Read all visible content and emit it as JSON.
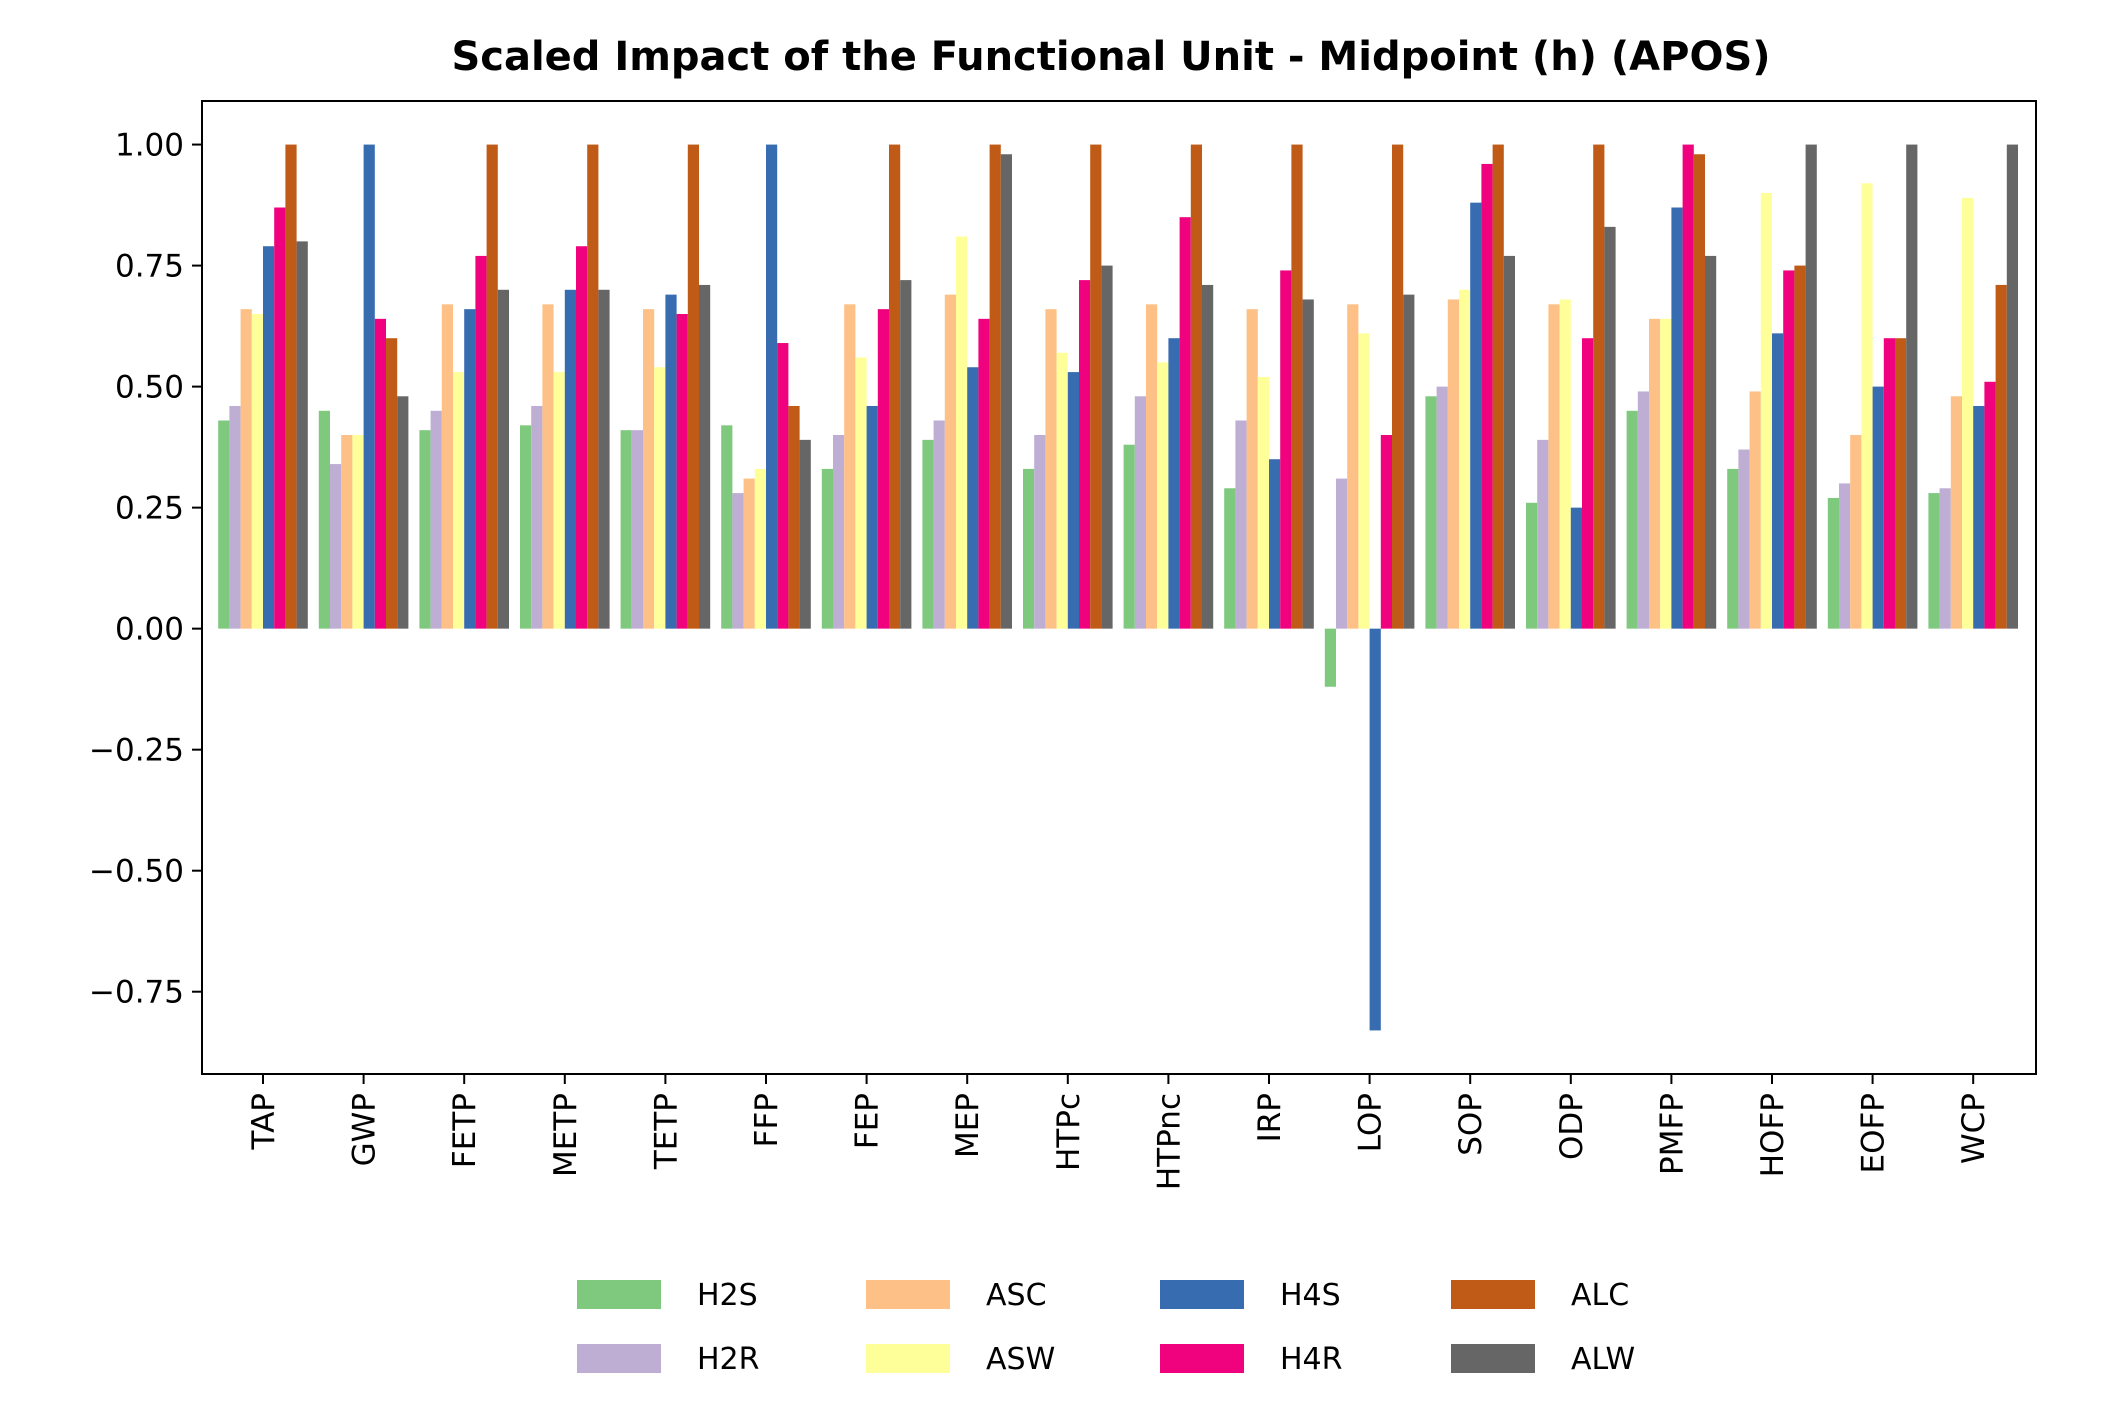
{
  "chart_data": {
    "type": "bar",
    "title": "Scaled Impact of the Functional Unit - Midpoint (h) (APOS)",
    "xlabel": "",
    "ylabel": "",
    "ylim": [
      -0.92,
      1.09
    ],
    "yticks": [
      1.0,
      0.75,
      0.5,
      0.25,
      0.0,
      -0.25,
      -0.5,
      -0.75
    ],
    "ytick_labels": [
      "1.00",
      "0.75",
      "0.50",
      "0.25",
      "0.00",
      "−0.25",
      "−0.50",
      "−0.75"
    ],
    "grid": false,
    "legend_position": "bottom-center",
    "categories": [
      "TAP",
      "GWP",
      "FETP",
      "METP",
      "TETP",
      "FFP",
      "FEP",
      "MEP",
      "HTPc",
      "HTPnc",
      "IRP",
      "LOP",
      "SOP",
      "ODP",
      "PMFP",
      "HOFP",
      "EOFP",
      "WCP"
    ],
    "series": [
      {
        "name": "H2S",
        "color": "#7fc97f",
        "values": [
          0.43,
          0.45,
          0.41,
          0.42,
          0.41,
          0.42,
          0.33,
          0.39,
          0.33,
          0.38,
          0.29,
          -0.12,
          0.48,
          0.26,
          0.45,
          0.33,
          0.27,
          0.28
        ]
      },
      {
        "name": "H2R",
        "color": "#beaed4",
        "values": [
          0.46,
          0.34,
          0.45,
          0.46,
          0.41,
          0.28,
          0.4,
          0.43,
          0.4,
          0.48,
          0.43,
          0.31,
          0.5,
          0.39,
          0.49,
          0.37,
          0.3,
          0.29
        ]
      },
      {
        "name": "ASC",
        "color": "#fdc086",
        "values": [
          0.66,
          0.4,
          0.67,
          0.67,
          0.66,
          0.31,
          0.67,
          0.69,
          0.66,
          0.67,
          0.66,
          0.67,
          0.68,
          0.67,
          0.64,
          0.49,
          0.4,
          0.48
        ]
      },
      {
        "name": "ASW",
        "color": "#ffff99",
        "values": [
          0.65,
          0.4,
          0.53,
          0.53,
          0.54,
          0.33,
          0.56,
          0.81,
          0.57,
          0.55,
          0.52,
          0.61,
          0.7,
          0.68,
          0.64,
          0.9,
          0.92,
          0.89
        ]
      },
      {
        "name": "H4S",
        "color": "#386cb0",
        "values": [
          0.79,
          1.0,
          0.66,
          0.7,
          0.69,
          1.0,
          0.46,
          0.54,
          0.53,
          0.6,
          0.35,
          -0.83,
          0.88,
          0.25,
          0.87,
          0.61,
          0.5,
          0.46
        ]
      },
      {
        "name": "H4R",
        "color": "#f0027f",
        "values": [
          0.87,
          0.64,
          0.77,
          0.79,
          0.65,
          0.59,
          0.66,
          0.64,
          0.72,
          0.85,
          0.74,
          0.4,
          0.96,
          0.6,
          1.0,
          0.74,
          0.6,
          0.51
        ]
      },
      {
        "name": "ALC",
        "color": "#bf5b17",
        "values": [
          1.0,
          0.6,
          1.0,
          1.0,
          1.0,
          0.46,
          1.0,
          1.0,
          1.0,
          1.0,
          1.0,
          1.0,
          1.0,
          1.0,
          0.98,
          0.75,
          0.6,
          0.71
        ]
      },
      {
        "name": "ALW",
        "color": "#666666",
        "values": [
          0.8,
          0.48,
          0.7,
          0.7,
          0.71,
          0.39,
          0.72,
          0.98,
          0.75,
          0.71,
          0.68,
          0.69,
          0.77,
          0.83,
          0.77,
          1.0,
          1.0,
          1.0
        ]
      }
    ],
    "legend_order": [
      "H2S",
      "H2R",
      "ASC",
      "ASW",
      "H4S",
      "H4R",
      "ALC",
      "ALW"
    ]
  }
}
